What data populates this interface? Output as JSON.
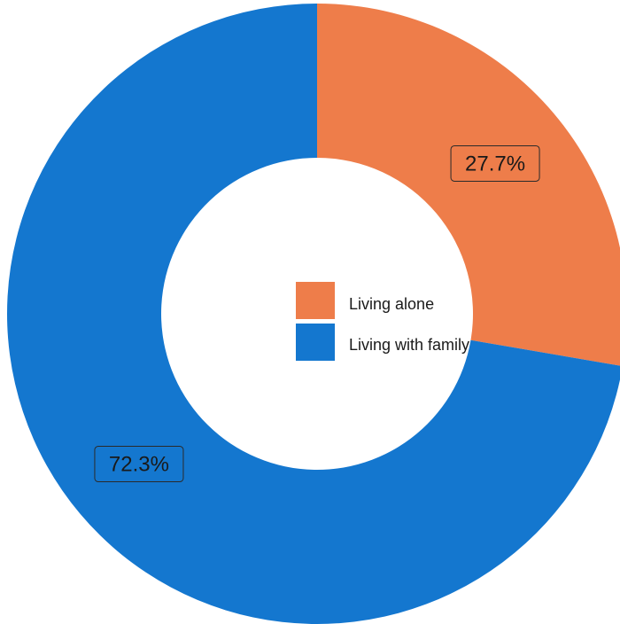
{
  "chart_data": {
    "type": "pie",
    "donut": true,
    "title": "",
    "categories": [
      "Living alone",
      "Living with family"
    ],
    "values": [
      27.7,
      72.3
    ],
    "data_labels": [
      "27.7%",
      "72.3%"
    ],
    "colors": [
      "#ee7d4a",
      "#1477cf"
    ],
    "legend": {
      "position": "center",
      "entries": [
        "Living alone",
        "Living with family"
      ]
    }
  }
}
